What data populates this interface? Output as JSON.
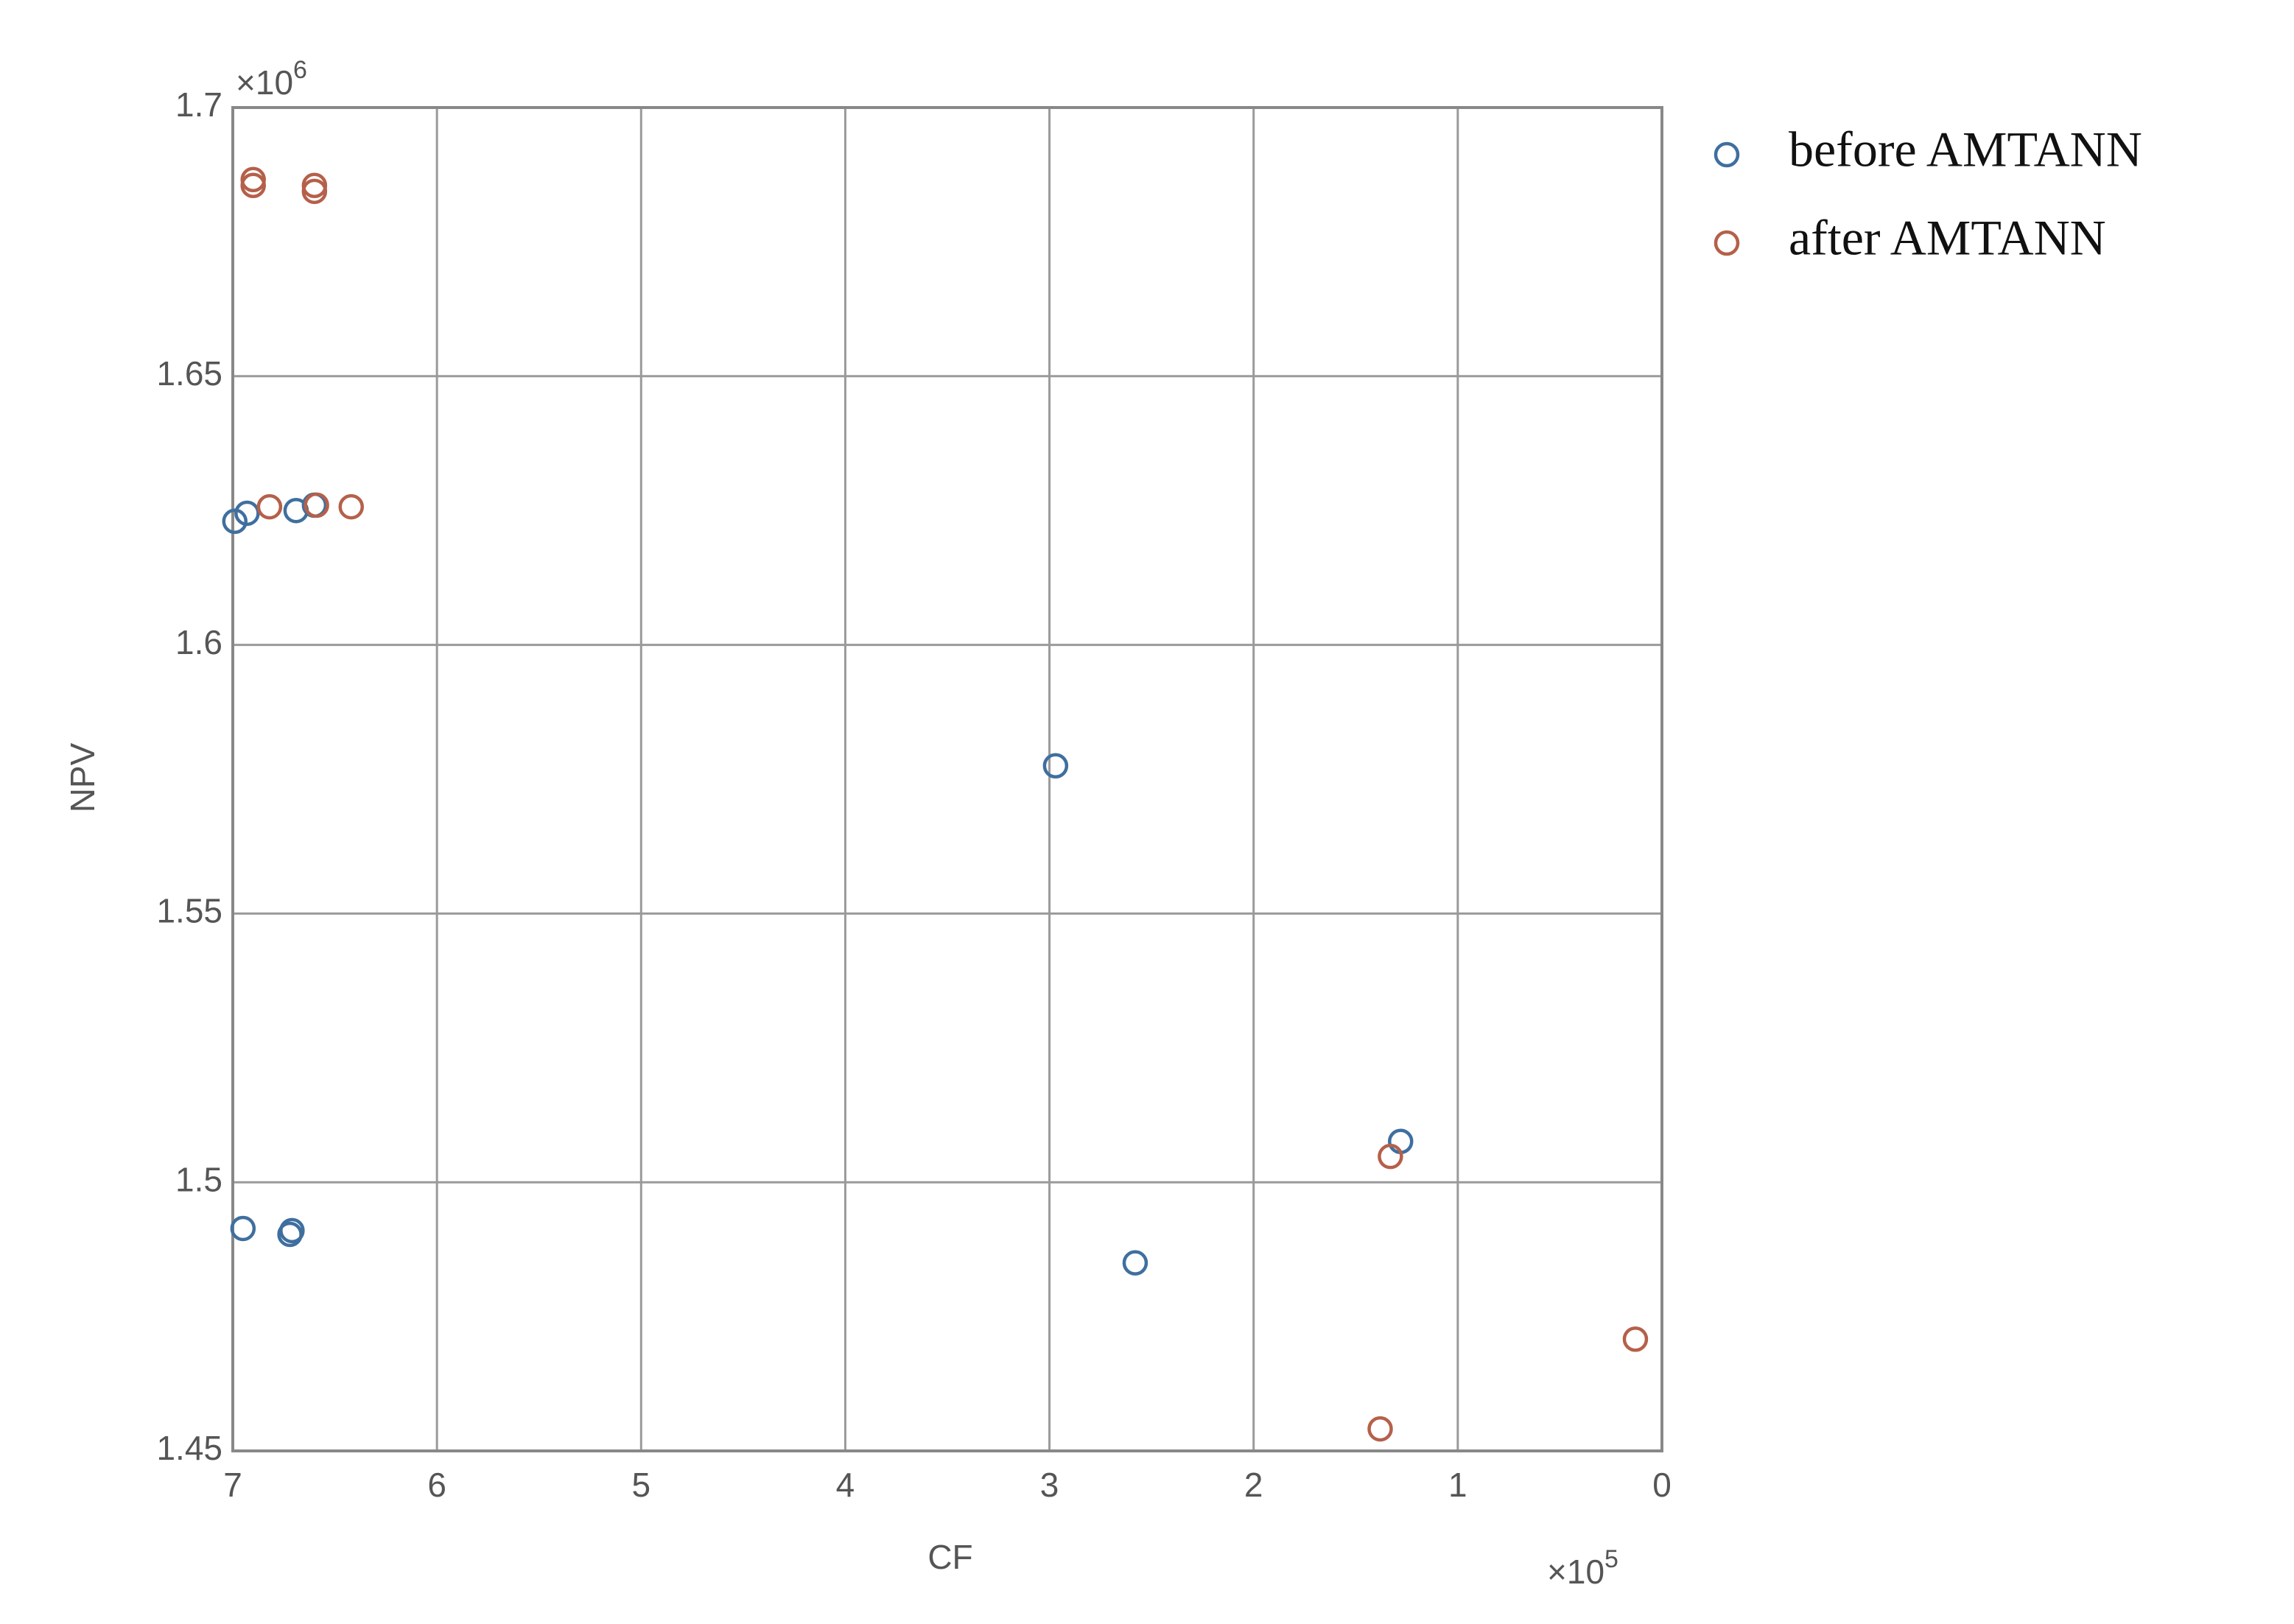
{
  "chart_data": {
    "type": "scatter",
    "x_label": "CF",
    "y_label": "NPV",
    "x_multiplier": {
      "base": "×10",
      "exponent": "5"
    },
    "y_multiplier": {
      "base": "×10",
      "exponent": "6"
    },
    "xlim": [
      7,
      0
    ],
    "ylim": [
      1.45,
      1.7
    ],
    "xticks": [
      7,
      6,
      5,
      4,
      3,
      2,
      1,
      0
    ],
    "yticks": [
      1.45,
      1.5,
      1.55,
      1.6,
      1.65,
      1.7
    ],
    "grid": true,
    "legend": "outside-right-top",
    "series": [
      {
        "name": "before AMTANN",
        "color": "#3f6f9f",
        "x": [
          6.99,
          6.93,
          6.69,
          6.6,
          2.97,
          1.28,
          2.58,
          6.95,
          6.72,
          6.71
        ],
        "values": [
          1.623,
          1.6245,
          1.625,
          1.626,
          1.5775,
          1.5076,
          1.485,
          1.4914,
          1.4903,
          1.491
        ]
      },
      {
        "name": "after AMTANN",
        "color": "#b5604a",
        "x": [
          6.9,
          6.9,
          6.6,
          6.6,
          6.82,
          6.59,
          6.42,
          1.33,
          1.38,
          0.13
        ],
        "values": [
          1.6866,
          1.6855,
          1.6855,
          1.6844,
          1.6257,
          1.626,
          1.6257,
          1.5048,
          1.4541,
          1.4708
        ]
      }
    ]
  }
}
